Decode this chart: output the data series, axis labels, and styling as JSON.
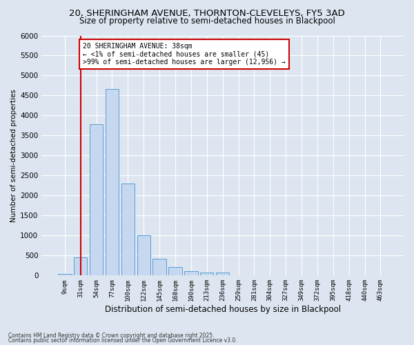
{
  "title_line1": "20, SHERINGHAM AVENUE, THORNTON-CLEVELEYS, FY5 3AD",
  "title_line2": "Size of property relative to semi-detached houses in Blackpool",
  "xlabel": "Distribution of semi-detached houses by size in Blackpool",
  "ylabel": "Number of semi-detached properties",
  "categories": [
    "9sqm",
    "31sqm",
    "54sqm",
    "77sqm",
    "100sqm",
    "122sqm",
    "145sqm",
    "168sqm",
    "190sqm",
    "213sqm",
    "236sqm",
    "259sqm",
    "281sqm",
    "304sqm",
    "327sqm",
    "349sqm",
    "372sqm",
    "395sqm",
    "418sqm",
    "440sqm",
    "463sqm"
  ],
  "values": [
    45,
    450,
    3780,
    4660,
    2300,
    1000,
    415,
    215,
    110,
    80,
    70,
    0,
    0,
    0,
    0,
    0,
    0,
    0,
    0,
    0,
    0
  ],
  "bar_color": "#c5d8f0",
  "bar_edge_color": "#5b9bd5",
  "vline_x_index": 1,
  "vline_color": "#cc0000",
  "ylim": [
    0,
    6000
  ],
  "yticks": [
    0,
    500,
    1000,
    1500,
    2000,
    2500,
    3000,
    3500,
    4000,
    4500,
    5000,
    5500,
    6000
  ],
  "annotation_text": "20 SHERINGHAM AVENUE: 38sqm\n← <1% of semi-detached houses are smaller (45)\n>99% of semi-detached houses are larger (12,956) →",
  "annotation_box_facecolor": "#ffffff",
  "annotation_box_edgecolor": "#cc0000",
  "fig_facecolor": "#dde6f0",
  "axes_facecolor": "#dde6f0",
  "grid_color": "#ffffff",
  "footer_line1": "Contains HM Land Registry data © Crown copyright and database right 2025.",
  "footer_line2": "Contains public sector information licensed under the Open Government Licence v3.0."
}
